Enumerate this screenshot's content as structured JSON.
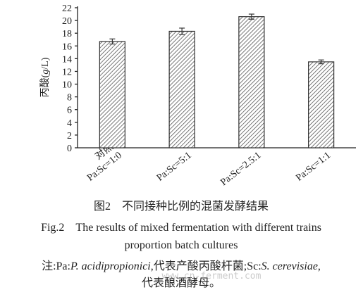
{
  "chart_data": {
    "type": "bar",
    "ylabel": {
      "text": "丙酸",
      "unit_open": "(",
      "unit_var": "g",
      "unit_rest": "/L)"
    },
    "categories": [
      [
        "对照",
        "Pa:Sc=1:0"
      ],
      [
        "Pa:Sc=5:1"
      ],
      [
        "Pa:Sc=2.5:1"
      ],
      [
        "Pa:Sc=1:1"
      ]
    ],
    "values": [
      16.7,
      18.3,
      20.6,
      13.5
    ],
    "errors": [
      0.4,
      0.5,
      0.4,
      0.3
    ],
    "color": "#333333",
    "ylim": [
      0,
      22
    ],
    "yticks": [
      0,
      2,
      4,
      6,
      8,
      10,
      12,
      14,
      16,
      18,
      20,
      22
    ],
    "caption_cn": "图2　不同接种比例的混菌发酵结果",
    "caption_en": [
      "Fig.2　The results of mixed fermentation with different trains",
      "proportion batch cultures"
    ],
    "note": [
      [
        "注:Pa:",
        "P. acidipropionici",
        ",代表产酸丙酸杆菌;Sc:",
        "S. cerevisiae",
        ","
      ],
      [
        "代表酿酒酵母。"
      ]
    ],
    "watermark": "www.cn-ferment.com"
  }
}
